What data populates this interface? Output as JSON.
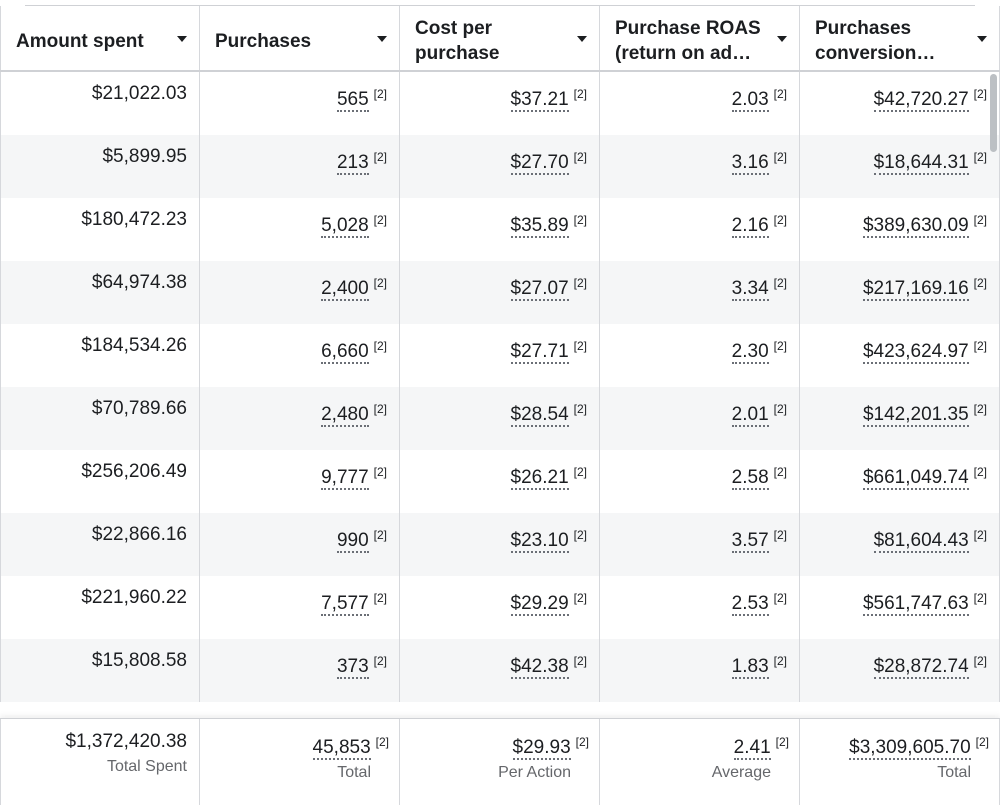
{
  "columns": [
    {
      "label": "Amount spent"
    },
    {
      "label": "Purchases"
    },
    {
      "label": "Cost per purchase"
    },
    {
      "label": "Purchase ROAS (return on ad…"
    },
    {
      "label": "Purchases conversion…"
    }
  ],
  "footnote": "[2]",
  "rows": [
    {
      "amount_spent": "$21,022.03",
      "purchases": "565",
      "cost_per_purchase": "$37.21",
      "roas": "2.03",
      "conversion_value": "$42,720.27"
    },
    {
      "amount_spent": "$5,899.95",
      "purchases": "213",
      "cost_per_purchase": "$27.70",
      "roas": "3.16",
      "conversion_value": "$18,644.31"
    },
    {
      "amount_spent": "$180,472.23",
      "purchases": "5,028",
      "cost_per_purchase": "$35.89",
      "roas": "2.16",
      "conversion_value": "$389,630.09"
    },
    {
      "amount_spent": "$64,974.38",
      "purchases": "2,400",
      "cost_per_purchase": "$27.07",
      "roas": "3.34",
      "conversion_value": "$217,169.16"
    },
    {
      "amount_spent": "$184,534.26",
      "purchases": "6,660",
      "cost_per_purchase": "$27.71",
      "roas": "2.30",
      "conversion_value": "$423,624.97"
    },
    {
      "amount_spent": "$70,789.66",
      "purchases": "2,480",
      "cost_per_purchase": "$28.54",
      "roas": "2.01",
      "conversion_value": "$142,201.35"
    },
    {
      "amount_spent": "$256,206.49",
      "purchases": "9,777",
      "cost_per_purchase": "$26.21",
      "roas": "2.58",
      "conversion_value": "$661,049.74"
    },
    {
      "amount_spent": "$22,866.16",
      "purchases": "990",
      "cost_per_purchase": "$23.10",
      "roas": "3.57",
      "conversion_value": "$81,604.43"
    },
    {
      "amount_spent": "$221,960.22",
      "purchases": "7,577",
      "cost_per_purchase": "$29.29",
      "roas": "2.53",
      "conversion_value": "$561,747.63"
    },
    {
      "amount_spent": "$15,808.58",
      "purchases": "373",
      "cost_per_purchase": "$42.38",
      "roas": "1.83",
      "conversion_value": "$28,872.74"
    }
  ],
  "totals": {
    "amount_spent": {
      "value": "$1,372,420.38",
      "label": "Total Spent"
    },
    "purchases": {
      "value": "45,853",
      "label": "Total"
    },
    "cost_per_purchase": {
      "value": "$29.93",
      "label": "Per Action"
    },
    "roas": {
      "value": "2.41",
      "label": "Average"
    },
    "conversion_value": {
      "value": "$3,309,605.70",
      "label": "Total"
    }
  }
}
